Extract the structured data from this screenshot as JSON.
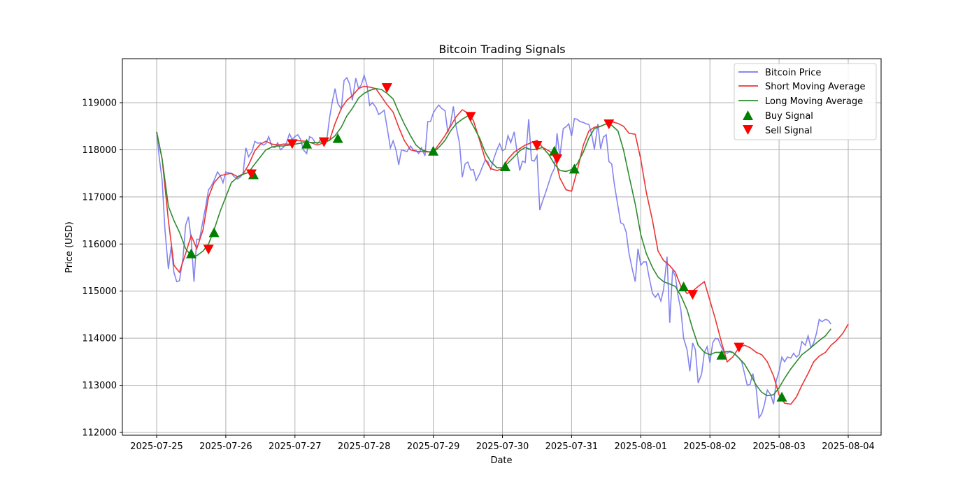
{
  "chart_data": {
    "type": "line",
    "title": "Bitcoin Trading Signals",
    "xlabel": "Date",
    "ylabel": "Price (USD)",
    "x_ticks": [
      "2025-07-25",
      "2025-07-26",
      "2025-07-27",
      "2025-07-28",
      "2025-07-29",
      "2025-07-30",
      "2025-07-31",
      "2025-08-01",
      "2025-08-02",
      "2025-08-03",
      "2025-08-04"
    ],
    "y_ticks": [
      112000,
      113000,
      114000,
      115000,
      116000,
      117000,
      118000,
      119000
    ],
    "xlim_days": [
      -0.5,
      10.4
    ],
    "ylim": [
      111980,
      119930
    ],
    "grid": true,
    "legend_position": "upper right",
    "legend": [
      "Bitcoin Price",
      "Short Moving Average",
      "Long Moving Average",
      "Buy Signal",
      "Sell Signal"
    ],
    "colors": {
      "price": "#7777ee",
      "short_ma": "#ee3333",
      "long_ma": "#2e8b2e",
      "buy": "#008000",
      "sell": "#ff0000"
    },
    "series": [
      {
        "name": "Bitcoin Price",
        "x_days": [
          0,
          0.04,
          0.08,
          0.12,
          0.17,
          0.21,
          0.25,
          0.29,
          0.33,
          0.38,
          0.42,
          0.46,
          0.5,
          0.54,
          0.58,
          0.62,
          0.67,
          0.71,
          0.75,
          0.79,
          0.83,
          0.88,
          0.92,
          0.96,
          1.0,
          1.04,
          1.08,
          1.12,
          1.17,
          1.21,
          1.25,
          1.29,
          1.33,
          1.38,
          1.42,
          1.46,
          1.5,
          1.54,
          1.58,
          1.62,
          1.67,
          1.71,
          1.75,
          1.79,
          1.83,
          1.88,
          1.92,
          1.96,
          2.0,
          2.04,
          2.08,
          2.12,
          2.17,
          2.21,
          2.25,
          2.29,
          2.33,
          2.38,
          2.42,
          2.46,
          2.5,
          2.54,
          2.58,
          2.62,
          2.67,
          2.71,
          2.75,
          2.79,
          2.83,
          2.88,
          2.92,
          2.96,
          3.0,
          3.04,
          3.08,
          3.12,
          3.17,
          3.21,
          3.25,
          3.29,
          3.33,
          3.38,
          3.42,
          3.46,
          3.5,
          3.54,
          3.58,
          3.62,
          3.67,
          3.71,
          3.75,
          3.79,
          3.83,
          3.88,
          3.92,
          3.96,
          4.0,
          4.04,
          4.08,
          4.12,
          4.17,
          4.21,
          4.25,
          4.29,
          4.33,
          4.38,
          4.42,
          4.46,
          4.5,
          4.54,
          4.58,
          4.62,
          4.67,
          4.71,
          4.75,
          4.79,
          4.83,
          4.88,
          4.92,
          4.96,
          5.0,
          5.04,
          5.08,
          5.12,
          5.17,
          5.21,
          5.25,
          5.29,
          5.33,
          5.38,
          5.42,
          5.46,
          5.5,
          5.54,
          5.58,
          5.62,
          5.67,
          5.71,
          5.75,
          5.79,
          5.83,
          5.88,
          5.92,
          5.96,
          6.0,
          6.04,
          6.08,
          6.12,
          6.17,
          6.21,
          6.25,
          6.29,
          6.33,
          6.38,
          6.42,
          6.46,
          6.5,
          6.54,
          6.58,
          6.62,
          6.67,
          6.71,
          6.75,
          6.79,
          6.83,
          6.88,
          6.92,
          6.96,
          7.0,
          7.04,
          7.08,
          7.12,
          7.17,
          7.21,
          7.25,
          7.29,
          7.33,
          7.38,
          7.42,
          7.46,
          7.5,
          7.54,
          7.58,
          7.62,
          7.67,
          7.71,
          7.75,
          7.79,
          7.83,
          7.88,
          7.92,
          7.96,
          8.0,
          8.04,
          8.08,
          8.12,
          8.17,
          8.21,
          8.25,
          8.29,
          8.33,
          8.38,
          8.42,
          8.46,
          8.5,
          8.54,
          8.58,
          8.62,
          8.67,
          8.71,
          8.75,
          8.79,
          8.83,
          8.88,
          8.92,
          8.96,
          9.0,
          9.04,
          9.08,
          9.12,
          9.17,
          9.21,
          9.25,
          9.29,
          9.33,
          9.38,
          9.42,
          9.46,
          9.5,
          9.54,
          9.58,
          9.62,
          9.67,
          9.71,
          9.75,
          9.79,
          9.83,
          9.88,
          9.92,
          9.96,
          10.0
        ],
        "values": [
          118380,
          117800,
          117350,
          116300,
          115470,
          115950,
          115400,
          115200,
          115220,
          115700,
          116400,
          116580,
          116100,
          115200,
          116100,
          116100,
          116500,
          116800,
          117150,
          117230,
          117350,
          117530,
          117450,
          117300,
          117530,
          117510,
          117500,
          117430,
          117380,
          117420,
          117500,
          118040,
          117850,
          117970,
          118180,
          118140,
          118150,
          118100,
          118130,
          118280,
          118060,
          118050,
          118150,
          118000,
          118050,
          118150,
          118340,
          118220,
          118280,
          118320,
          118230,
          118000,
          117920,
          118280,
          118250,
          118160,
          118130,
          118250,
          118200,
          118200,
          118680,
          119020,
          119300,
          118980,
          118870,
          119470,
          119530,
          119400,
          119050,
          119520,
          119300,
          119380,
          119580,
          119380,
          118940,
          119000,
          118900,
          118750,
          118790,
          118840,
          118500,
          118040,
          118190,
          118000,
          117680,
          118000,
          117980,
          117960,
          118080,
          118000,
          117990,
          117920,
          118040,
          117870,
          118600,
          118600,
          118780,
          118880,
          118950,
          118880,
          118830,
          118370,
          118550,
          118920,
          118500,
          118130,
          117420,
          117700,
          117740,
          117570,
          117580,
          117350,
          117490,
          117640,
          117780,
          117750,
          117590,
          117830,
          118000,
          118130,
          117980,
          118020,
          118300,
          118150,
          118380,
          117970,
          117560,
          117760,
          117730,
          118650,
          117780,
          117760,
          117880,
          116720,
          116910,
          117070,
          117300,
          117480,
          117600,
          118350,
          117850,
          118450,
          118490,
          118550,
          118290,
          118660,
          118650,
          118600,
          118580,
          118550,
          118540,
          118330,
          118010,
          118550,
          118020,
          118270,
          118320,
          117750,
          117700,
          117250,
          116800,
          116450,
          116420,
          116250,
          115800,
          115450,
          115200,
          115900,
          115550,
          115620,
          115620,
          115300,
          114950,
          114870,
          114950,
          114790,
          115030,
          115730,
          114330,
          115440,
          115310,
          114900,
          114600,
          114000,
          113750,
          113300,
          113900,
          113760,
          113050,
          113240,
          113700,
          113820,
          113480,
          113900,
          114000,
          113980,
          113800,
          113700,
          113680,
          113730,
          113700,
          113640,
          113580,
          113500,
          113250,
          113000,
          113020,
          113250,
          112920,
          112310,
          112400,
          112600,
          112900,
          112800,
          112600,
          113100,
          113300,
          113600,
          113500,
          113600,
          113580,
          113680,
          113600,
          113650,
          113930,
          113850,
          114050,
          113800,
          113900,
          114100,
          114400,
          114350,
          114400,
          114380,
          114300
        ],
        "note": "approximate, read from pixels"
      },
      {
        "name": "Short Moving Average",
        "x_days": [
          0,
          0.08,
          0.17,
          0.25,
          0.33,
          0.42,
          0.5,
          0.58,
          0.67,
          0.75,
          0.83,
          0.92,
          1.0,
          1.08,
          1.17,
          1.25,
          1.33,
          1.42,
          1.5,
          1.58,
          1.67,
          1.75,
          1.83,
          1.92,
          2.0,
          2.17,
          2.33,
          2.5,
          2.58,
          2.67,
          2.75,
          2.83,
          2.92,
          3.0,
          3.08,
          3.17,
          3.33,
          3.42,
          3.5,
          3.58,
          3.67,
          3.75,
          3.83,
          4.0,
          4.17,
          4.33,
          4.42,
          4.5,
          4.58,
          4.67,
          4.75,
          4.83,
          4.92,
          5.0,
          5.08,
          5.17,
          5.33,
          5.42,
          5.5,
          5.58,
          5.67,
          5.75,
          5.83,
          5.92,
          6.0,
          6.08,
          6.17,
          6.25,
          6.33,
          6.42,
          6.5,
          6.58,
          6.67,
          6.75,
          6.83,
          6.92,
          7.0,
          7.08,
          7.17,
          7.25,
          7.33,
          7.42,
          7.5,
          7.58,
          7.67,
          7.75,
          7.83,
          7.92,
          8.0,
          8.08,
          8.17,
          8.25,
          8.33,
          8.42,
          8.5,
          8.58,
          8.67,
          8.75,
          8.83,
          8.92,
          9.0,
          9.08,
          9.17,
          9.25,
          9.33,
          9.42,
          9.5,
          9.58,
          9.67,
          9.75,
          9.83,
          9.92,
          10.0
        ],
        "values": [
          118380,
          117800,
          116500,
          115550,
          115400,
          115800,
          116180,
          115900,
          116300,
          117000,
          117300,
          117450,
          117480,
          117500,
          117430,
          117490,
          117680,
          117980,
          118120,
          118180,
          118120,
          118100,
          118120,
          118120,
          118200,
          118180,
          118100,
          118200,
          118560,
          118880,
          119050,
          119150,
          119300,
          119350,
          119330,
          119300,
          118960,
          118800,
          118480,
          118200,
          118000,
          117970,
          117960,
          117950,
          118300,
          118700,
          118850,
          118780,
          118620,
          118200,
          117800,
          117600,
          117560,
          117600,
          117800,
          117950,
          118100,
          118150,
          118200,
          118050,
          117980,
          117900,
          117400,
          117150,
          117120,
          117550,
          118100,
          118400,
          118480,
          118500,
          118550,
          118600,
          118560,
          118500,
          118350,
          118330,
          117800,
          117100,
          116500,
          115850,
          115650,
          115540,
          115400,
          115100,
          114950,
          115000,
          115100,
          115200,
          114800,
          114400,
          113900,
          113500,
          113600,
          113800,
          113850,
          113800,
          113700,
          113650,
          113500,
          113200,
          112800,
          112620,
          112600,
          112750,
          113000,
          113250,
          113500,
          113620,
          113700,
          113850,
          113950,
          114100,
          114300,
          114400
        ],
        "note": "approximate"
      },
      {
        "name": "Long Moving Average",
        "x_days": [
          0,
          0.08,
          0.17,
          0.25,
          0.33,
          0.42,
          0.5,
          0.58,
          0.67,
          0.75,
          0.83,
          0.92,
          1.0,
          1.08,
          1.17,
          1.25,
          1.33,
          1.42,
          1.5,
          1.58,
          1.67,
          1.75,
          1.83,
          1.92,
          2.0,
          2.17,
          2.33,
          2.5,
          2.58,
          2.67,
          2.75,
          2.83,
          2.92,
          3.0,
          3.08,
          3.17,
          3.25,
          3.33,
          3.42,
          3.5,
          3.58,
          3.67,
          3.75,
          3.83,
          3.92,
          4.0,
          4.08,
          4.17,
          4.25,
          4.33,
          4.42,
          4.5,
          4.58,
          4.67,
          4.75,
          4.83,
          4.92,
          5.0,
          5.08,
          5.17,
          5.25,
          5.33,
          5.42,
          5.5,
          5.58,
          5.67,
          5.75,
          5.83,
          5.92,
          6.0,
          6.08,
          6.17,
          6.25,
          6.33,
          6.42,
          6.5,
          6.58,
          6.67,
          6.75,
          6.83,
          6.92,
          7.0,
          7.08,
          7.17,
          7.25,
          7.33,
          7.42,
          7.5,
          7.58,
          7.67,
          7.75,
          7.83,
          7.92,
          8.0,
          8.08,
          8.17,
          8.25,
          8.33,
          8.42,
          8.5,
          8.58,
          8.67,
          8.75,
          8.83,
          8.92,
          9.0,
          9.08,
          9.17,
          9.25,
          9.33,
          9.42,
          9.5,
          9.58,
          9.67,
          9.75,
          9.83,
          9.92,
          10.0
        ],
        "values": [
          118380,
          117800,
          116800,
          116500,
          116250,
          115900,
          115750,
          115750,
          115850,
          116000,
          116300,
          116700,
          117000,
          117300,
          117420,
          117480,
          117520,
          117700,
          117850,
          118000,
          118060,
          118080,
          118080,
          118100,
          118120,
          118160,
          118150,
          118200,
          118300,
          118480,
          118720,
          118880,
          119100,
          119200,
          119260,
          119300,
          119280,
          119200,
          119080,
          118800,
          118550,
          118300,
          118100,
          118000,
          117960,
          117950,
          118050,
          118200,
          118400,
          118550,
          118650,
          118720,
          118500,
          118250,
          117950,
          117750,
          117620,
          117620,
          117720,
          117850,
          117980,
          118050,
          118000,
          118020,
          118050,
          117900,
          117700,
          117560,
          117540,
          117580,
          117700,
          117950,
          118250,
          118450,
          118500,
          118550,
          118520,
          118400,
          118000,
          117450,
          116850,
          116200,
          115800,
          115500,
          115300,
          115200,
          115150,
          115100,
          114900,
          114600,
          114200,
          113850,
          113700,
          113650,
          113700,
          113700,
          113720,
          113700,
          113580,
          113450,
          113250,
          113000,
          112850,
          112780,
          112800,
          112950,
          113150,
          113350,
          113500,
          113650,
          113750,
          113850,
          113950,
          114050,
          114200
        ],
        "note": "approximate"
      }
    ],
    "buy_signals": [
      {
        "x_day": 0.5,
        "price": 115800
      },
      {
        "x_day": 0.83,
        "price": 116250
      },
      {
        "x_day": 1.4,
        "price": 117480
      },
      {
        "x_day": 2.17,
        "price": 118130
      },
      {
        "x_day": 2.62,
        "price": 118250
      },
      {
        "x_day": 4.0,
        "price": 117980
      },
      {
        "x_day": 5.04,
        "price": 117650
      },
      {
        "x_day": 5.75,
        "price": 117980
      },
      {
        "x_day": 6.04,
        "price": 117600
      },
      {
        "x_day": 7.62,
        "price": 115100
      },
      {
        "x_day": 8.17,
        "price": 113650
      },
      {
        "x_day": 9.04,
        "price": 112760
      }
    ],
    "sell_signals": [
      {
        "x_day": 0.75,
        "price": 115880
      },
      {
        "x_day": 1.37,
        "price": 117480
      },
      {
        "x_day": 1.96,
        "price": 118120
      },
      {
        "x_day": 2.42,
        "price": 118160
      },
      {
        "x_day": 3.33,
        "price": 119310
      },
      {
        "x_day": 4.54,
        "price": 118700
      },
      {
        "x_day": 5.5,
        "price": 118080
      },
      {
        "x_day": 5.79,
        "price": 117800
      },
      {
        "x_day": 6.54,
        "price": 118540
      },
      {
        "x_day": 7.75,
        "price": 114920
      },
      {
        "x_day": 8.42,
        "price": 113800
      },
      {
        "x_day": 3.33,
        "price": 119310
      }
    ]
  }
}
